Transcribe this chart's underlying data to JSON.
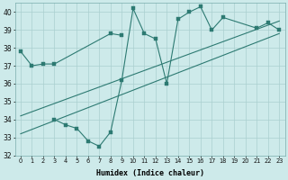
{
  "xlabel": "Humidex (Indice chaleur)",
  "background_color": "#cdeaea",
  "line_color": "#2d7a72",
  "grid_color": "#aacfcf",
  "series1_x": [
    0,
    1,
    2,
    3,
    8,
    9
  ],
  "series1_y": [
    37.8,
    37.0,
    37.1,
    37.1,
    38.8,
    38.7
  ],
  "series2_x": [
    3,
    4,
    5,
    6,
    7,
    8,
    9,
    10,
    11,
    12,
    13,
    14,
    15,
    16,
    17,
    18,
    21,
    22,
    23
  ],
  "series2_y": [
    34.0,
    33.7,
    33.5,
    32.8,
    32.5,
    33.3,
    36.2,
    40.2,
    38.8,
    38.5,
    36.0,
    39.6,
    40.0,
    40.3,
    39.0,
    39.7,
    39.1,
    39.4,
    39.0
  ],
  "trend1_x": [
    0,
    23
  ],
  "trend1_y": [
    33.2,
    38.8
  ],
  "trend2_x": [
    0,
    23
  ],
  "trend2_y": [
    34.2,
    39.5
  ],
  "ylim": [
    32,
    40.5
  ],
  "xlim": [
    -0.5,
    23.5
  ],
  "yticks": [
    32,
    33,
    34,
    35,
    36,
    37,
    38,
    39,
    40
  ],
  "xticks": [
    0,
    1,
    2,
    3,
    4,
    5,
    6,
    7,
    8,
    9,
    10,
    11,
    12,
    13,
    14,
    15,
    16,
    17,
    18,
    19,
    20,
    21,
    22,
    23
  ]
}
